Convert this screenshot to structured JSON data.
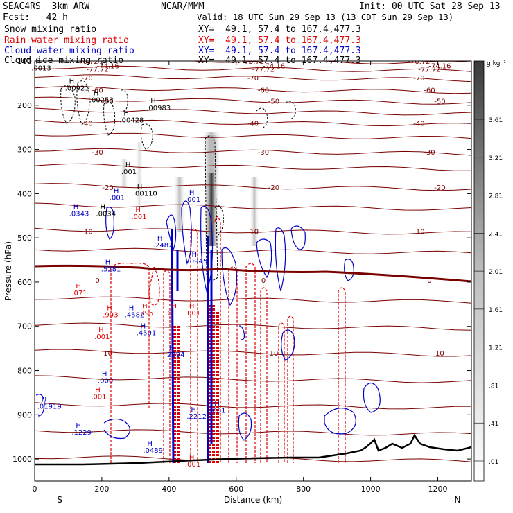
{
  "header": {
    "project": "SEAC4RS  3km ARW",
    "org": "NCAR/MMM",
    "init": "Init: 00 UTC Sat 28 Sep 13",
    "fcst": "Fcst:   42 h",
    "valid": "Valid: 18 UTC Sun 29 Sep 13 (13 CDT Sun 29 Sep 13)",
    "fields": [
      {
        "label": "Snow mixing ratio",
        "xy": "XY=  49.1, 57.4 to 167.4,477.3",
        "color": "#000000"
      },
      {
        "label": "Rain water mixing ratio",
        "xy": "XY=  49.1, 57.4 to 167.4,477.3",
        "color": "#e00000"
      },
      {
        "label": "Cloud water mixing ratio",
        "xy": "XY=  49.1, 57.4 to 167.4,477.3",
        "color": "#0000c8"
      },
      {
        "label": "Cloud ice mixing ratio",
        "xy": "XY=  49.1, 57.4 to 167.4,477.3",
        "color": "#000000"
      }
    ]
  },
  "colorbar": {
    "unit": "g kg⁻¹",
    "ticks": [
      "3.61",
      "3.21",
      "2.81",
      "2.41",
      "2.01",
      "1.61",
      "1.21",
      ".81",
      ".41",
      ".01"
    ]
  },
  "chart_data": {
    "type": "contour",
    "xlabel": "Distance (km)",
    "ylabel": "Pressure (hPa)",
    "xlim": [
      0,
      1300
    ],
    "ylim": [
      1050,
      100
    ],
    "xticks": [
      "0",
      "200",
      "400",
      "600",
      "800",
      "1000",
      "1200"
    ],
    "yticks": [
      "100",
      "200",
      "300",
      "400",
      "500",
      "600",
      "700",
      "800",
      "900",
      "1000"
    ],
    "x_end_labels": {
      "left": "S",
      "right": "N"
    },
    "temperature_contours": [
      {
        "label": "-76.72",
        "p": 100
      },
      {
        "label": "-77.72",
        "p": 118
      },
      {
        "label": "-74.16",
        "p": 110
      },
      {
        "label": "-70",
        "p": 138
      },
      {
        "label": "-60",
        "p": 165
      },
      {
        "label": "-50",
        "p": 190
      },
      {
        "label": "-40",
        "p": 240
      },
      {
        "label": "-30",
        "p": 305
      },
      {
        "label": "-20",
        "p": 385
      },
      {
        "label": "-10",
        "p": 485
      },
      {
        "label": "0",
        "p": 595
      },
      {
        "label": "10",
        "p": 760
      }
    ],
    "contour_labels": [
      {
        "text": ".0013",
        "x": 5,
        "p": 135,
        "color": "#000000"
      },
      {
        "text": ".00921",
        "x": 205,
        "p": 185,
        "color": "#000000"
      },
      {
        "text": ".00253",
        "x": 350,
        "p": 215,
        "color": "#000000"
      },
      {
        "text": ".00428",
        "x": 530,
        "p": 265,
        "color": "#000000"
      },
      {
        "text": ".00983",
        "x": 690,
        "p": 235,
        "color": "#000000"
      },
      {
        "text": ".001",
        "x": 540,
        "p": 395,
        "color": "#000000"
      },
      {
        "text": ".00110",
        "x": 610,
        "p": 450,
        "color": "#000000"
      },
      {
        "text": ".0034",
        "x": 390,
        "p": 500,
        "color": "#000000"
      },
      {
        "text": ".0343",
        "x": 230,
        "p": 500,
        "color": "#0000c8"
      },
      {
        "text": ".001",
        "x": 470,
        "p": 460,
        "color": "#0000c8"
      },
      {
        "text": ".001",
        "x": 920,
        "p": 465,
        "color": "#0000c8"
      },
      {
        "text": ".001",
        "x": 600,
        "p": 508,
        "color": "#e00000"
      },
      {
        "text": ".2482",
        "x": 730,
        "p": 580,
        "color": "#0000c8"
      },
      {
        "text": ".0945",
        "x": 935,
        "p": 620,
        "color": "#0000c8"
      },
      {
        "text": ".5281",
        "x": 420,
        "p": 640,
        "color": "#0000c8"
      },
      {
        "text": ".071",
        "x": 245,
        "p": 700,
        "color": "#e00000"
      },
      {
        "text": ".295",
        "x": 640,
        "p": 750,
        "color": "#e00000"
      },
      {
        "text": "0",
        "x": 815,
        "p": 750,
        "color": "#e00000"
      },
      {
        "text": ".001",
        "x": 920,
        "p": 750,
        "color": "#e00000"
      },
      {
        "text": ".993",
        "x": 430,
        "p": 755,
        "color": "#e00000"
      },
      {
        "text": ".4582",
        "x": 560,
        "p": 755,
        "color": "#0000c8"
      },
      {
        "text": ".4501",
        "x": 630,
        "p": 800,
        "color": "#0000c8"
      },
      {
        "text": ".001",
        "x": 380,
        "p": 810,
        "color": "#e00000"
      },
      {
        "text": ".2294",
        "x": 800,
        "p": 855,
        "color": "#0000c8"
      },
      {
        "text": ".000",
        "x": 400,
        "p": 920,
        "color": "#0000c8"
      },
      {
        "text": ".001",
        "x": 360,
        "p": 960,
        "color": "#e00000"
      },
      {
        "text": ".01919",
        "x": 40,
        "p": 985,
        "color": "#0000c8"
      },
      {
        "text": ".1229",
        "x": 245,
        "p": 1050,
        "color": "#0000c8"
      },
      {
        "text": ".2212",
        "x": 930,
        "p": 1010,
        "color": "#0000c8"
      },
      {
        "text": ".001",
        "x": 1070,
        "p": 995,
        "color": "#0000c8"
      },
      {
        "text": ".0489",
        "x": 670,
        "p": 1095,
        "color": "#0000c8"
      },
      {
        "text": ".001",
        "x": 920,
        "p": 1130,
        "color": "#e00000"
      }
    ]
  }
}
